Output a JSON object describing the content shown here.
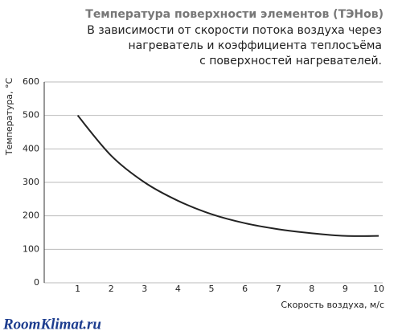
{
  "chart_data": {
    "type": "line",
    "title": "Температура поверхности элементов (ТЭНов)",
    "subtitle": [
      "В зависимости от скорости потока воздуха через",
      "нагреватель  и  коэффициента  теплосъёма",
      "с поверхностей нагревателей."
    ],
    "x_label": "Скорость воздуха, м/с",
    "y_label": "Температура, °С",
    "watermark": "RoomKlimat.ru",
    "x": [
      1,
      2,
      3,
      4,
      5,
      6,
      7,
      8,
      9,
      10
    ],
    "series": [
      {
        "name": "Температура",
        "color": "#222222",
        "values": [
          500,
          380,
          300,
          245,
          205,
          178,
          160,
          148,
          140,
          140
        ]
      }
    ],
    "xlim": [
      0,
      10
    ],
    "xticks": [
      1,
      2,
      3,
      4,
      5,
      6,
      7,
      8,
      9,
      10
    ],
    "ylim": [
      0,
      600
    ],
    "yticks": [
      0,
      100,
      200,
      300,
      400,
      500,
      600
    ],
    "grid": true
  }
}
